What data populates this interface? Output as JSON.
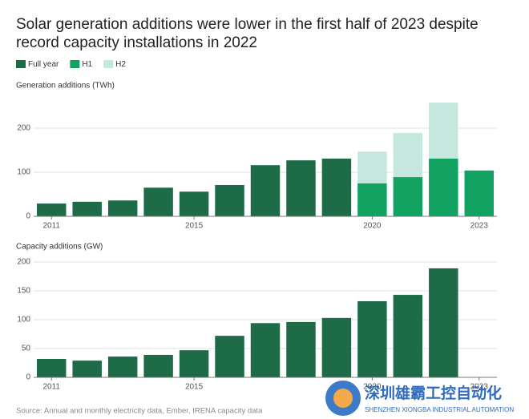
{
  "title": "Solar generation additions were lower in the first half of 2023 despite record capacity installations in 2022",
  "source": "Source: Annual and monthly electricity data, Ember, IRENA capacity data",
  "watermark": {
    "name": "深圳雄霸工控自动化",
    "subtitle": "SHENZHEN XIONGBA INDUSTRIAL AUTOMATION"
  },
  "chart_data": [
    {
      "type": "bar",
      "stacked": true,
      "ylabel": "Generation additions (TWh)",
      "x": [
        2011,
        2012,
        2013,
        2014,
        2015,
        2016,
        2017,
        2018,
        2019,
        2020,
        2021,
        2022,
        2023
      ],
      "series": [
        {
          "name": "Full year",
          "color": "#1d6b47",
          "values": [
            29,
            33,
            36,
            65,
            56,
            71,
            116,
            127,
            131,
            null,
            null,
            null,
            null
          ]
        },
        {
          "name": "H1",
          "color": "#12a262",
          "values": [
            null,
            null,
            null,
            null,
            null,
            null,
            null,
            null,
            null,
            75,
            89,
            131,
            104
          ]
        },
        {
          "name": "H2",
          "color": "#c5e7dd",
          "values": [
            null,
            null,
            null,
            null,
            null,
            null,
            null,
            null,
            null,
            72,
            100,
            127,
            null
          ]
        }
      ],
      "xlim": [
        2010.5,
        2023.5
      ],
      "xticks": [
        2011,
        2015,
        2020,
        2023
      ],
      "ylim": [
        0,
        270
      ],
      "yticks": [
        0,
        100,
        200
      ],
      "grid": true
    },
    {
      "type": "bar",
      "stacked": true,
      "ylabel": "Capacity additions (GW)",
      "x": [
        2011,
        2012,
        2013,
        2014,
        2015,
        2016,
        2017,
        2018,
        2019,
        2020,
        2021,
        2022,
        2023
      ],
      "series": [
        {
          "name": "Full year",
          "color": "#1d6b47",
          "values": [
            32,
            29,
            36,
            39,
            47,
            72,
            94,
            96,
            103,
            132,
            143,
            189,
            null
          ]
        }
      ],
      "xlim": [
        2010.5,
        2023.5
      ],
      "xticks": [
        2011,
        2015,
        2020,
        2023
      ],
      "ylim": [
        0,
        200
      ],
      "yticks": [
        0,
        50,
        100,
        150,
        200
      ],
      "grid": true
    }
  ]
}
